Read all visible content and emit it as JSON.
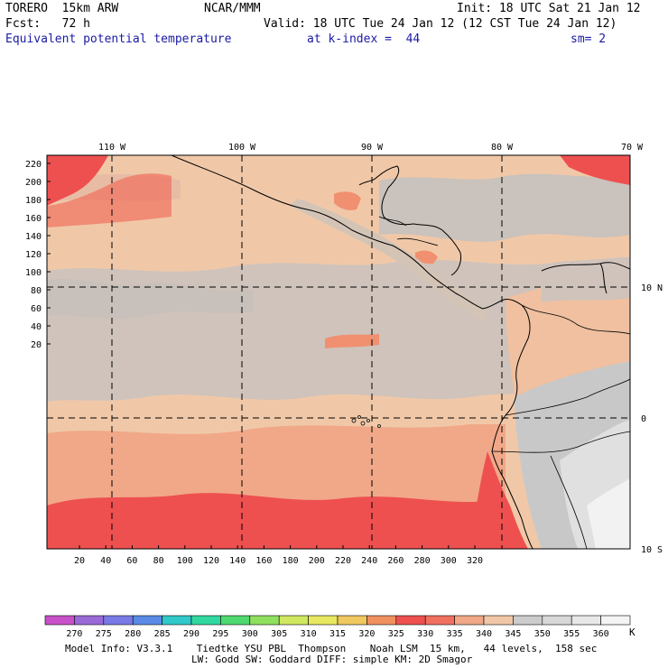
{
  "header": {
    "model": "TORERO  15km ARW",
    "center": "NCAR/MMM",
    "init": "Init: 18 UTC Sat 21 Jan 12",
    "fcst": "Fcst:   72 h",
    "valid": "Valid: 18 UTC Tue 24 Jan 12 (12 CST Tue 24 Jan 12)",
    "field": "Equivalent potential temperature",
    "level": "at k-index =  44",
    "smooth": "sm= 2"
  },
  "map": {
    "top_lon_labels": [
      "110 W",
      "100 W",
      "90 W",
      "80 W",
      "70 W"
    ],
    "right_lat_labels": [
      "10 N",
      "0",
      "10 S"
    ],
    "left_axis": [
      "220",
      "200",
      "180",
      "160",
      "140",
      "120",
      "100",
      "80",
      "60",
      "40",
      "20"
    ],
    "bottom_axis": [
      "20",
      "40",
      "60",
      "80",
      "100",
      "120",
      "140",
      "160",
      "180",
      "200",
      "220",
      "240",
      "260",
      "280",
      "300",
      "320"
    ]
  },
  "colorbar": {
    "labels": [
      "270",
      "275",
      "280",
      "285",
      "290",
      "295",
      "300",
      "305",
      "310",
      "315",
      "320",
      "325",
      "330",
      "335",
      "340",
      "345",
      "350",
      "355",
      "360"
    ],
    "unit": "K",
    "colors": [
      "#c850c8",
      "#9a6ad6",
      "#7a7ae6",
      "#5a8ae6",
      "#30c8c8",
      "#30d8a0",
      "#50d870",
      "#90e060",
      "#d0e860",
      "#e8e860",
      "#f0c860",
      "#f09060",
      "#ee5050",
      "#f07060",
      "#f0a888",
      "#f0c8a8",
      "#cccccc",
      "#d8d8d8",
      "#e8e8e8",
      "#f4f4f4"
    ]
  },
  "footer": {
    "line1": "Model Info: V3.3.1    Tiedtke YSU PBL  Thompson    Noah LSM  15 km,   44 levels,  158 sec",
    "line2": "LW: Godd SW: Goddard DIFF: simple KM: 2D Smagor"
  }
}
